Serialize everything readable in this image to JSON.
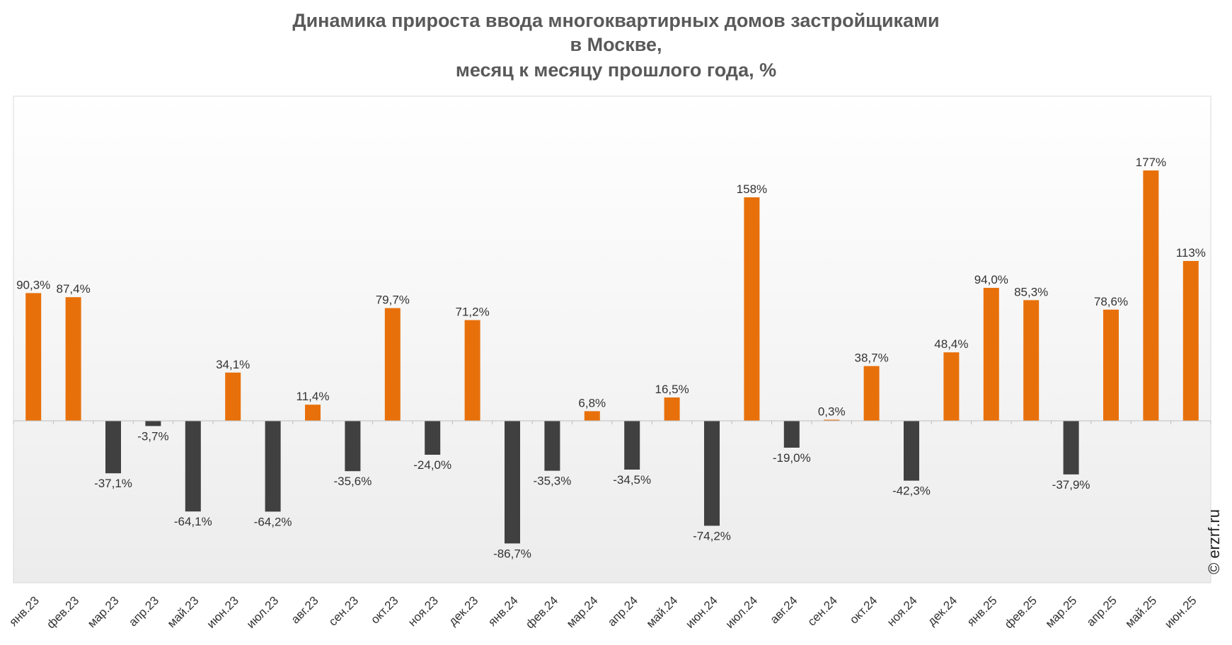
{
  "title": {
    "line1": "Динамика прироста ввода многоквартирных домов застройщиками",
    "line2": "в Москве,",
    "line3": "месяц к месяцу прошлого года, %"
  },
  "copyright": "© erzrf.ru",
  "colors": {
    "positive": "#E8700A",
    "negative": "#404040",
    "text": "#333333",
    "axis": "#BFBFBF"
  },
  "chart_data": {
    "type": "bar",
    "title": "Динамика прироста ввода многоквартирных домов застройщиками в Москве, месяц к месяцу прошлого года, %",
    "xlabel": "",
    "ylabel": "%",
    "ylim": [
      -100,
      190
    ],
    "grid": false,
    "categories": [
      "янв.23",
      "фев.23",
      "мар.23",
      "апр.23",
      "май.23",
      "июн.23",
      "июл.23",
      "авг.23",
      "сен.23",
      "окт.23",
      "ноя.23",
      "дек.23",
      "янв.24",
      "фев.24",
      "мар.24",
      "апр.24",
      "май.24",
      "июн.24",
      "июл.24",
      "авг.24",
      "сен.24",
      "окт.24",
      "ноя.24",
      "дек.24",
      "янв.25",
      "фев.25",
      "мар.25",
      "апр.25",
      "май.25",
      "июн.25"
    ],
    "values": [
      90.3,
      87.4,
      -37.1,
      -3.7,
      -64.1,
      34.1,
      -64.2,
      11.4,
      -35.6,
      79.7,
      -24.0,
      71.2,
      -86.7,
      -35.3,
      6.8,
      -34.5,
      16.5,
      -74.2,
      158,
      -19.0,
      0.3,
      38.7,
      -42.3,
      48.4,
      94.0,
      85.3,
      -37.9,
      78.6,
      177,
      113
    ],
    "labels": [
      "90,3%",
      "87,4%",
      "-37,1%",
      "-3,7%",
      "-64,1%",
      "34,1%",
      "-64,2%",
      "11,4%",
      "-35,6%",
      "79,7%",
      "-24,0%",
      "71,2%",
      "-86,7%",
      "-35,3%",
      "6,8%",
      "-34,5%",
      "16,5%",
      "-74,2%",
      "158%",
      "-19,0%",
      "0,3%",
      "38,7%",
      "-42,3%",
      "48,4%",
      "94,0%",
      "85,3%",
      "-37,9%",
      "78,6%",
      "177%",
      "113%"
    ]
  }
}
